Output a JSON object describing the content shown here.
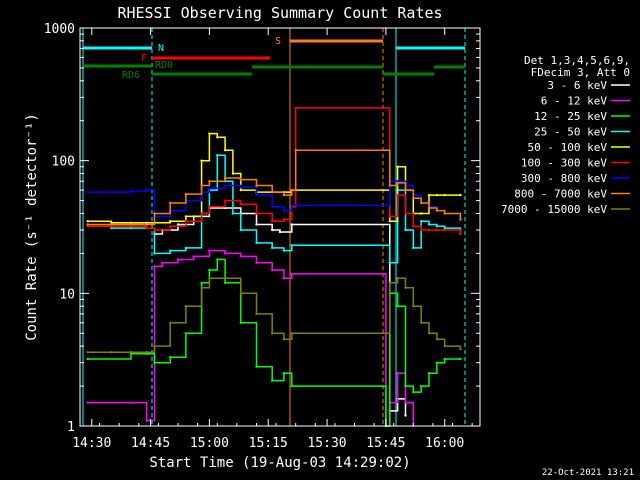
{
  "chart_data": {
    "type": "line",
    "title": "RHESSI Observing Summary Count Rates",
    "xlabel": "Start Time (19-Aug-03 14:29:02)",
    "ylabel": "Count Rate (s⁻¹ detector⁻¹)",
    "y_scale": "log",
    "ylim": [
      1,
      1000
    ],
    "xlim": [
      "14:27",
      "16:09"
    ],
    "x_tick_labels": [
      "14:30",
      "14:45",
      "15:00",
      "15:15",
      "15:30",
      "15:45",
      "16:00"
    ],
    "y_tick_labels": [
      "1",
      "10",
      "100",
      "1000"
    ],
    "legend_header": [
      "Det 1,3,4,5,6,9,",
      "FDecim 3, Att 0"
    ],
    "legend_placement": "right",
    "timestamp": "22-Oct-2021 13:21",
    "flag_labels": {
      "N": "N",
      "S": "S",
      "F": "F",
      "RD0": "RD0",
      "RD6": "RD6"
    },
    "series": [
      {
        "name": "3 - 6 keV",
        "color": "#ffffff",
        "x": [
          "14:46",
          "14:48",
          "14:52",
          "14:56",
          "15:00",
          "15:04",
          "15:08",
          "15:12",
          "15:16",
          "15:18",
          "15:21",
          "15:46",
          "15:48",
          "15:50"
        ],
        "y": [
          28,
          30,
          33,
          38,
          44,
          44,
          40,
          33,
          30,
          29,
          33,
          1.3,
          1.6,
          1.2
        ]
      },
      {
        "name": "6 - 12 keV",
        "color": "#ff00ff",
        "x": [
          "14:29",
          "14:40",
          "14:44",
          "14:46",
          "14:48",
          "14:52",
          "14:56",
          "15:00",
          "15:04",
          "15:08",
          "15:12",
          "15:16",
          "15:19",
          "15:21",
          "15:45",
          "15:46",
          "15:48",
          "15:50",
          "15:52"
        ],
        "y": [
          1.5,
          1.5,
          1.1,
          16,
          17,
          18,
          19,
          21,
          20,
          19,
          17,
          15,
          13,
          14,
          1,
          1.5,
          2.5,
          1.5,
          1
        ]
      },
      {
        "name": "12 - 25 keV",
        "color": "#00ff00",
        "x": [
          "14:29",
          "14:40",
          "14:44",
          "14:46",
          "14:50",
          "14:54",
          "14:58",
          "15:00",
          "15:02",
          "15:04",
          "15:08",
          "15:12",
          "15:16",
          "15:19",
          "15:21",
          "15:45",
          "15:46",
          "15:48",
          "15:50",
          "15:52",
          "15:54",
          "15:56",
          "15:58",
          "16:00",
          "16:04"
        ],
        "y": [
          3.2,
          3.5,
          3.5,
          3,
          3.3,
          5,
          12,
          15,
          18,
          12,
          6,
          2.8,
          2.2,
          2.5,
          2,
          1,
          10,
          8,
          2,
          1.8,
          2,
          2.5,
          3,
          3.2,
          3.2
        ]
      },
      {
        "name": "25 - 50 keV",
        "color": "#00ffff",
        "x": [
          "14:29",
          "14:35",
          "14:40",
          "14:44",
          "14:46",
          "14:50",
          "14:54",
          "14:58",
          "15:00",
          "15:02",
          "15:04",
          "15:06",
          "15:08",
          "15:12",
          "15:16",
          "15:19",
          "15:21",
          "15:46",
          "15:48",
          "15:50",
          "15:52",
          "15:54",
          "15:56",
          "15:58",
          "16:00",
          "16:04"
        ],
        "y": [
          32,
          31,
          31,
          31,
          20,
          21,
          22,
          40,
          60,
          110,
          70,
          40,
          30,
          24,
          22,
          21,
          23,
          17,
          60,
          30,
          22,
          35,
          33,
          32,
          31,
          30
        ]
      },
      {
        "name": "50 - 100 keV",
        "color": "#ffff00",
        "x": [
          "14:29",
          "14:35",
          "14:40",
          "14:44",
          "14:46",
          "14:50",
          "14:54",
          "14:58",
          "15:00",
          "15:02",
          "15:04",
          "15:06",
          "15:08",
          "15:12",
          "15:16",
          "15:19",
          "15:21",
          "15:46",
          "15:48",
          "15:50",
          "15:52",
          "15:54",
          "15:56",
          "15:58",
          "16:00",
          "16:04"
        ],
        "y": [
          35,
          34,
          34,
          34,
          34,
          35,
          38,
          100,
          160,
          150,
          120,
          80,
          60,
          58,
          58,
          58,
          60,
          35,
          90,
          60,
          40,
          40,
          55,
          55,
          55,
          55
        ]
      },
      {
        "name": "100 - 300 keV",
        "color": "#ff0000",
        "x": [
          "14:29",
          "14:35",
          "14:40",
          "14:44",
          "14:46",
          "14:50",
          "14:54",
          "14:58",
          "15:00",
          "15:04",
          "15:08",
          "15:12",
          "15:16",
          "15:19",
          "15:21",
          "15:22",
          "15:46",
          "15:48",
          "15:50",
          "15:52",
          "15:54",
          "15:56",
          "15:58",
          "16:00",
          "16:04"
        ],
        "y": [
          32,
          32,
          32,
          31,
          30,
          32,
          35,
          40,
          45,
          50,
          47,
          40,
          35,
          36,
          45,
          250,
          38,
          55,
          40,
          32,
          30,
          30,
          30,
          30,
          28
        ]
      },
      {
        "name": "300 - 800 keV",
        "color": "#0000ff",
        "x": [
          "14:29",
          "14:35",
          "14:40",
          "14:44",
          "14:46",
          "14:50",
          "14:54",
          "14:58",
          "15:00",
          "15:04",
          "15:08",
          "15:12",
          "15:16",
          "15:19",
          "15:21",
          "15:46",
          "15:48",
          "15:50",
          "15:52",
          "15:54",
          "15:56",
          "15:58",
          "16:00",
          "16:04"
        ],
        "y": [
          58,
          58,
          59,
          60,
          38,
          42,
          50,
          58,
          62,
          65,
          63,
          55,
          45,
          42,
          46,
          70,
          70,
          65,
          55,
          48,
          45,
          42,
          40,
          38
        ]
      },
      {
        "name": "800 - 7000 keV",
        "color": "#ff8000",
        "x": [
          "14:29",
          "14:35",
          "14:40",
          "14:44",
          "14:46",
          "14:50",
          "14:54",
          "14:58",
          "15:00",
          "15:04",
          "15:08",
          "15:12",
          "15:16",
          "15:19",
          "15:21",
          "15:22",
          "15:46",
          "15:48",
          "15:50",
          "15:52",
          "15:54",
          "15:56",
          "15:58",
          "16:00",
          "16:04"
        ],
        "y": [
          33,
          33,
          33,
          33,
          40,
          48,
          56,
          65,
          70,
          74,
          72,
          65,
          58,
          55,
          60,
          120,
          65,
          68,
          60,
          52,
          48,
          44,
          42,
          40,
          36
        ]
      },
      {
        "name": "7000 - 15000 keV",
        "color": "#808000",
        "x": [
          "14:29",
          "14:35",
          "14:40",
          "14:44",
          "14:46",
          "14:50",
          "14:54",
          "14:58",
          "15:00",
          "15:04",
          "15:08",
          "15:12",
          "15:16",
          "15:19",
          "15:21",
          "15:46",
          "15:48",
          "15:50",
          "15:52",
          "15:54",
          "15:56",
          "15:58",
          "16:00",
          "16:04"
        ],
        "y": [
          3.6,
          3.6,
          3.6,
          3.6,
          4,
          6,
          8,
          11,
          13,
          13,
          10,
          7,
          5,
          4.5,
          5,
          12,
          13,
          11,
          8,
          6,
          5,
          4.5,
          4,
          3.8
        ]
      }
    ]
  }
}
